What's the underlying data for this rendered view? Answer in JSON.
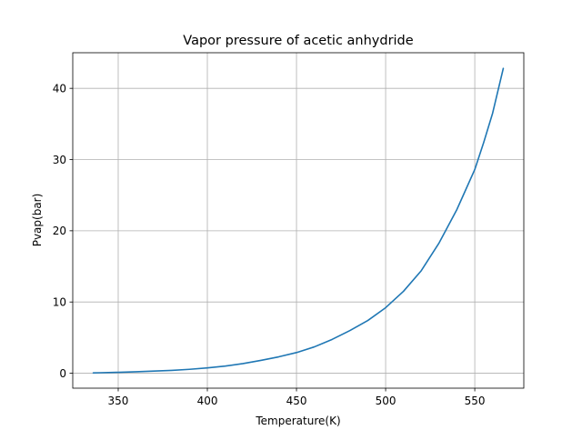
{
  "chart_data": {
    "type": "line",
    "title": "Vapor pressure of acetic anhydride",
    "xlabel": "Temperature(K)",
    "ylabel": "Pvap(bar)",
    "xlim": [
      324.5,
      577.5
    ],
    "ylim": [
      -2.1,
      45.0
    ],
    "xticks": [
      350,
      400,
      450,
      500,
      550
    ],
    "yticks": [
      0,
      10,
      20,
      30,
      40
    ],
    "grid": true,
    "line_color": "#1f77b4",
    "grid_color": "#b0b0b0",
    "series": [
      {
        "x": [
          336,
          340,
          350,
          360,
          370,
          380,
          390,
          400,
          410,
          420,
          430,
          440,
          450,
          460,
          470,
          480,
          490,
          500,
          510,
          520,
          530,
          540,
          550,
          555,
          560,
          566
        ],
        "y": [
          0.05,
          0.07,
          0.13,
          0.2,
          0.3,
          0.4,
          0.55,
          0.75,
          1.0,
          1.35,
          1.8,
          2.3,
          2.9,
          3.7,
          4.75,
          6.0,
          7.4,
          9.2,
          11.5,
          14.4,
          18.3,
          23.0,
          28.6,
          32.4,
          36.5,
          42.8
        ]
      }
    ]
  }
}
